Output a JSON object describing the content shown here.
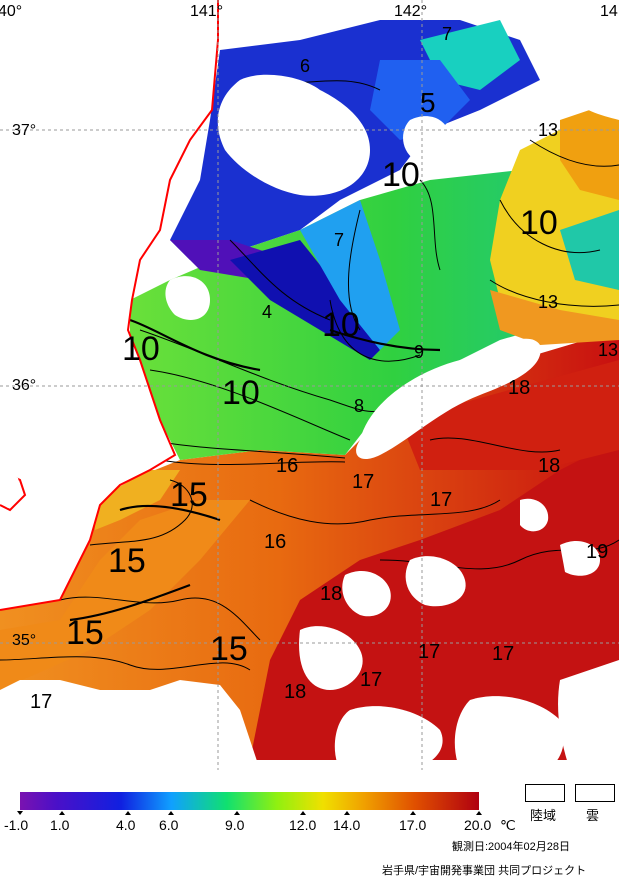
{
  "map": {
    "lat_labels": [
      "37°",
      "36°",
      "35°"
    ],
    "lon_labels": [
      "40°",
      "141°",
      "142°",
      "14"
    ],
    "contour_labels": [
      {
        "text": "6"
      },
      {
        "text": "7"
      },
      {
        "text": "5"
      },
      {
        "text": "10"
      },
      {
        "text": "13"
      },
      {
        "text": "10"
      },
      {
        "text": "13"
      },
      {
        "text": "7"
      },
      {
        "text": "4"
      },
      {
        "text": "10"
      },
      {
        "text": "9"
      },
      {
        "text": "13"
      },
      {
        "text": "10"
      },
      {
        "text": "10"
      },
      {
        "text": "8"
      },
      {
        "text": "18"
      },
      {
        "text": "16"
      },
      {
        "text": "17"
      },
      {
        "text": "17"
      },
      {
        "text": "18"
      },
      {
        "text": "15"
      },
      {
        "text": "16"
      },
      {
        "text": "19"
      },
      {
        "text": "15"
      },
      {
        "text": "18"
      },
      {
        "text": "15"
      },
      {
        "text": "15"
      },
      {
        "text": "17"
      },
      {
        "text": "17"
      },
      {
        "text": "17"
      },
      {
        "text": "18"
      },
      {
        "text": "17"
      }
    ],
    "colors": {
      "coast": "#ff0000",
      "grid": "#9a9a9a",
      "cold": "#2222cc",
      "cool": "#22c8ff",
      "mid": "#40d23a",
      "warm": "#e8c000",
      "orange": "#e87010",
      "hot": "#c81010"
    }
  },
  "colorbar": {
    "ticks": [
      "-1.0",
      "1.0",
      "4.0",
      "6.0",
      "9.0",
      "12.0",
      "14.0",
      "17.0",
      "20.0"
    ],
    "unit": "℃",
    "legend_land": "陸域",
    "legend_cloud": "雲"
  },
  "footer": {
    "observation_date": "観測日:2004年02月28日",
    "credit": "岩手県/宇宙開発事業団 共同プロジェクト"
  }
}
